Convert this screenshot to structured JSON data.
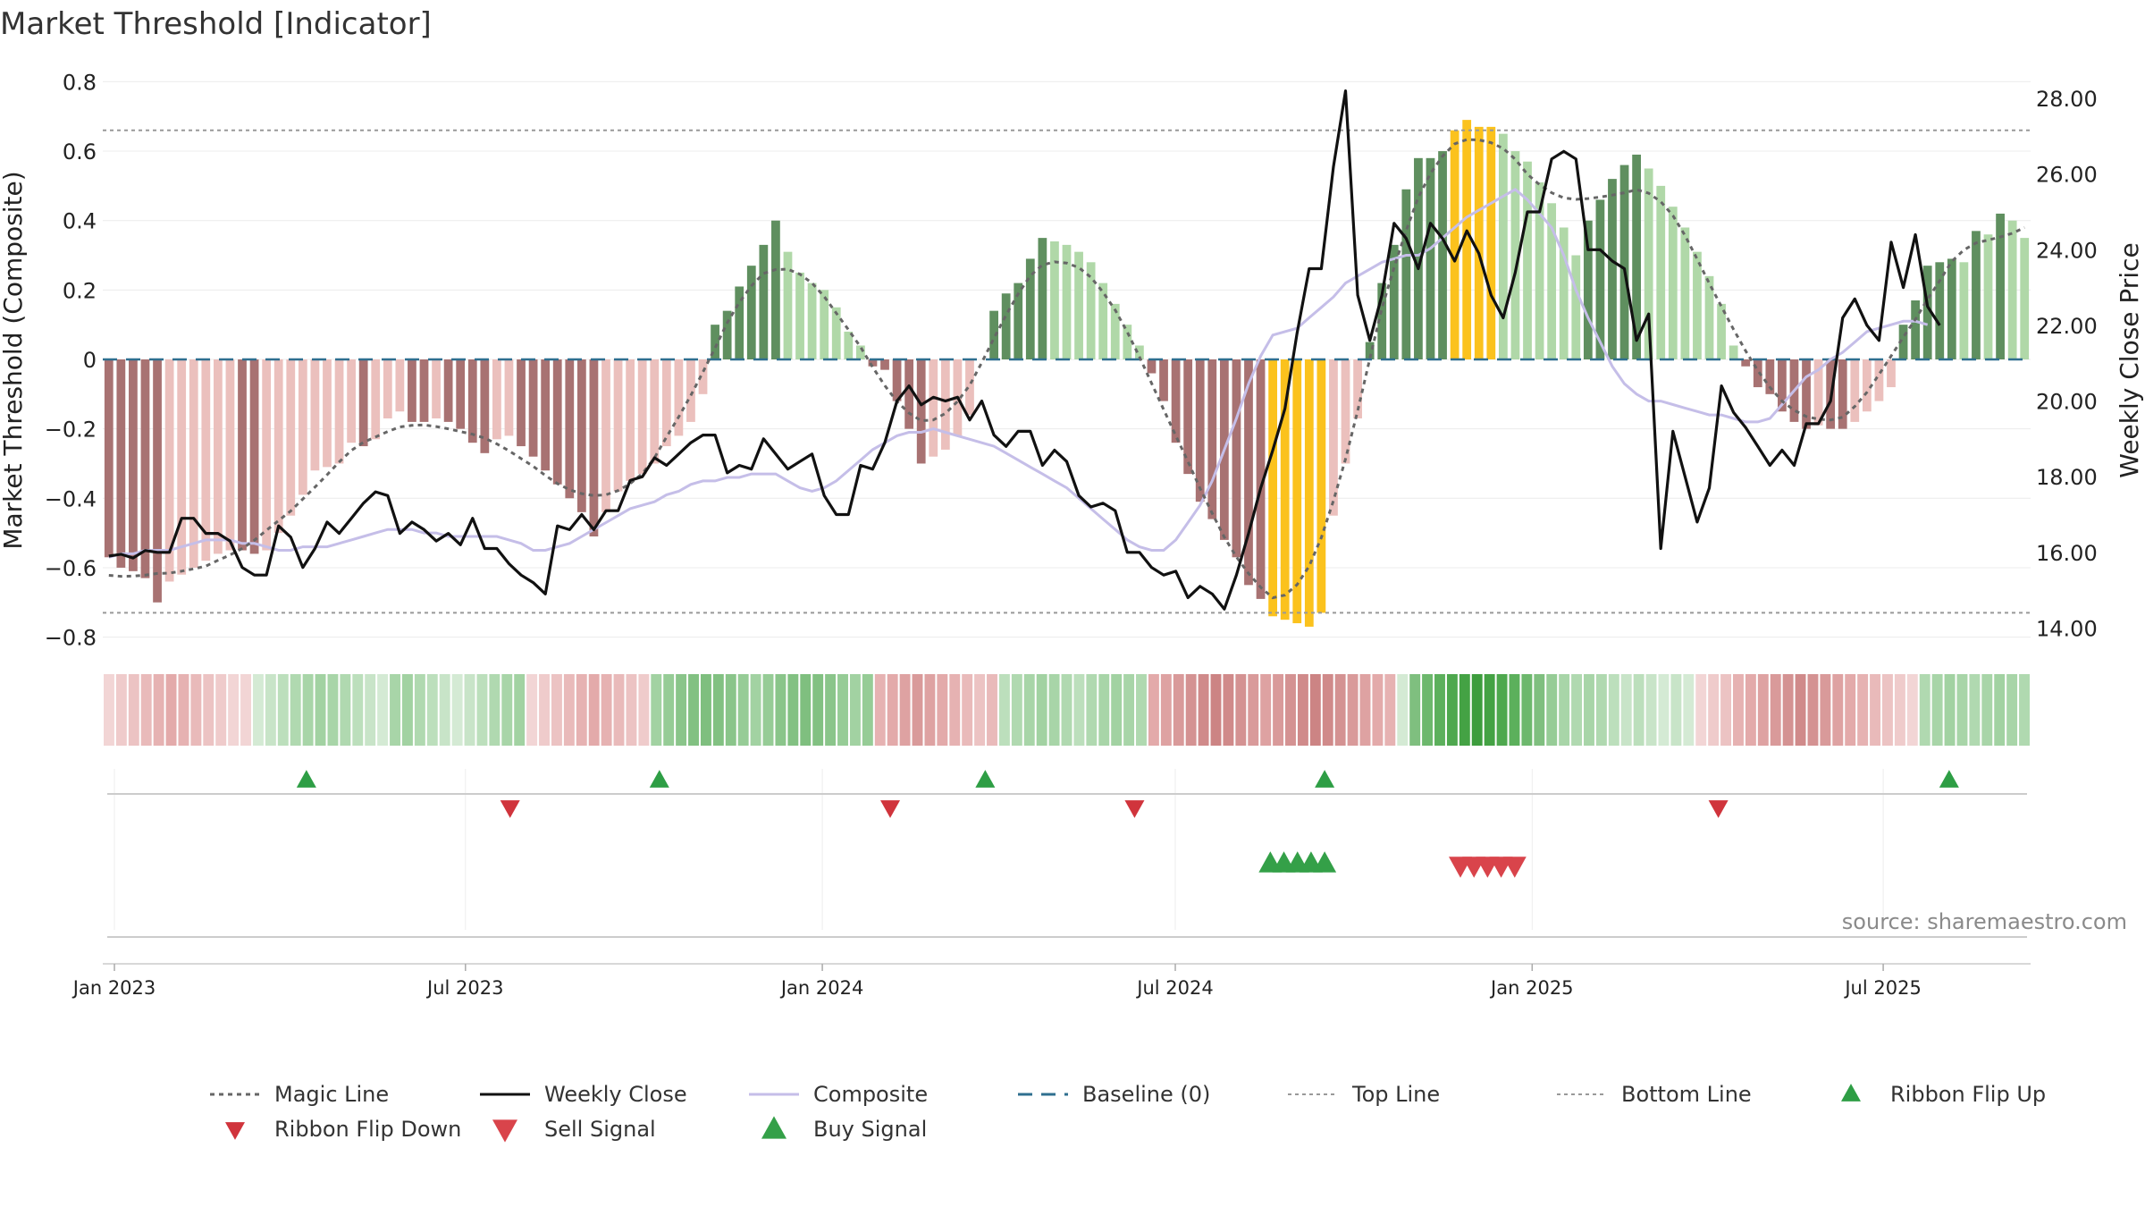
{
  "chart_data": {
    "type": "bar",
    "title": "Market Threshold [Indicator]",
    "ylabel_left": "Market Threshold (Composite)",
    "ylabel_right": "Weekly Close Price",
    "ylim_left": [
      -0.85,
      0.85
    ],
    "ylim_right": [
      13.3,
      28.9
    ],
    "yticks_left": [
      {
        "value": 0.8,
        "label": "0.8"
      },
      {
        "value": 0.6,
        "label": "0.6"
      },
      {
        "value": 0.4,
        "label": "0.4"
      },
      {
        "value": 0.2,
        "label": "0.2"
      },
      {
        "value": 0.0,
        "label": "0"
      },
      {
        "value": -0.2,
        "label": "−0.2"
      },
      {
        "value": -0.4,
        "label": "−0.4"
      },
      {
        "value": -0.6,
        "label": "−0.6"
      },
      {
        "value": -0.8,
        "label": "−0.8"
      }
    ],
    "yticks_right": [
      "28.00",
      "26.00",
      "24.00",
      "22.00",
      "20.00",
      "18.00",
      "16.00",
      "14.00"
    ],
    "x_start": "2022-12-26",
    "x_end": "2025-09-15",
    "xticks": [
      {
        "date": "2023-01-01",
        "label": "Jan 2023"
      },
      {
        "date": "2023-07-01",
        "label": "Jul 2023"
      },
      {
        "date": "2024-01-01",
        "label": "Jan 2024"
      },
      {
        "date": "2024-07-01",
        "label": "Jul 2024"
      },
      {
        "date": "2025-01-01",
        "label": "Jan 2025"
      },
      {
        "date": "2025-07-01",
        "label": "Jul 2025"
      }
    ],
    "top_line": 0.66,
    "bottom_line": -0.73,
    "baseline": 0,
    "composite_bars": [
      -0.57,
      -0.6,
      -0.61,
      -0.63,
      -0.7,
      -0.64,
      -0.62,
      -0.6,
      -0.58,
      -0.56,
      -0.55,
      -0.55,
      -0.56,
      -0.55,
      -0.5,
      -0.45,
      -0.39,
      -0.32,
      -0.31,
      -0.3,
      -0.24,
      -0.25,
      -0.23,
      -0.17,
      -0.15,
      -0.18,
      -0.18,
      -0.17,
      -0.18,
      -0.2,
      -0.24,
      -0.27,
      -0.23,
      -0.22,
      -0.25,
      -0.28,
      -0.32,
      -0.36,
      -0.4,
      -0.44,
      -0.51,
      -0.44,
      -0.38,
      -0.35,
      -0.33,
      -0.3,
      -0.25,
      -0.22,
      -0.18,
      -0.1,
      0.1,
      0.14,
      0.21,
      0.27,
      0.33,
      0.4,
      0.31,
      0.25,
      0.22,
      0.2,
      0.15,
      0.08,
      0.04,
      -0.02,
      -0.03,
      -0.12,
      -0.2,
      -0.3,
      -0.28,
      -0.26,
      -0.22,
      -0.16,
      0.0,
      0.14,
      0.19,
      0.22,
      0.29,
      0.35,
      0.34,
      0.33,
      0.31,
      0.28,
      0.22,
      0.16,
      0.1,
      0.04,
      -0.04,
      -0.12,
      -0.24,
      -0.33,
      -0.41,
      -0.46,
      -0.52,
      -0.57,
      -0.65,
      -0.69,
      -0.74,
      -0.75,
      -0.76,
      -0.77,
      -0.73,
      -0.45,
      -0.3,
      -0.17,
      0.05,
      0.22,
      0.33,
      0.49,
      0.58,
      0.58,
      0.6,
      0.66,
      0.69,
      0.67,
      0.67,
      0.65,
      0.6,
      0.57,
      0.51,
      0.45,
      0.38,
      0.3,
      0.4,
      0.46,
      0.52,
      0.56,
      0.59,
      0.55,
      0.5,
      0.44,
      0.38,
      0.31,
      0.24,
      0.16,
      0.04,
      -0.02,
      -0.08,
      -0.1,
      -0.15,
      -0.18,
      -0.2,
      -0.19,
      -0.2,
      -0.2,
      -0.18,
      -0.15,
      -0.12,
      -0.08,
      0.1,
      0.17,
      0.27,
      0.28,
      0.29,
      0.28,
      0.37,
      0.36,
      0.42,
      0.4,
      0.35
    ],
    "composite_line": [
      -0.57,
      -0.56,
      -0.56,
      -0.55,
      -0.55,
      -0.55,
      -0.54,
      -0.53,
      -0.52,
      -0.52,
      -0.52,
      -0.53,
      -0.53,
      -0.54,
      -0.55,
      -0.55,
      -0.54,
      -0.54,
      -0.54,
      -0.53,
      -0.52,
      -0.51,
      -0.5,
      -0.49,
      -0.49,
      -0.49,
      -0.5,
      -0.5,
      -0.51,
      -0.51,
      -0.51,
      -0.51,
      -0.51,
      -0.52,
      -0.53,
      -0.55,
      -0.55,
      -0.54,
      -0.53,
      -0.51,
      -0.49,
      -0.47,
      -0.45,
      -0.43,
      -0.42,
      -0.41,
      -0.39,
      -0.38,
      -0.36,
      -0.35,
      -0.35,
      -0.34,
      -0.34,
      -0.33,
      -0.33,
      -0.33,
      -0.35,
      -0.37,
      -0.38,
      -0.37,
      -0.35,
      -0.32,
      -0.29,
      -0.26,
      -0.24,
      -0.22,
      -0.21,
      -0.21,
      -0.2,
      -0.21,
      -0.22,
      -0.23,
      -0.24,
      -0.25,
      -0.27,
      -0.29,
      -0.31,
      -0.33,
      -0.35,
      -0.37,
      -0.4,
      -0.43,
      -0.46,
      -0.49,
      -0.52,
      -0.54,
      -0.55,
      -0.55,
      -0.52,
      -0.47,
      -0.42,
      -0.35,
      -0.26,
      -0.17,
      -0.07,
      0.01,
      0.07,
      0.08,
      0.09,
      0.12,
      0.15,
      0.18,
      0.22,
      0.24,
      0.26,
      0.28,
      0.29,
      0.3,
      0.3,
      0.32,
      0.35,
      0.38,
      0.41,
      0.43,
      0.45,
      0.47,
      0.49,
      0.46,
      0.42,
      0.38,
      0.3,
      0.2,
      0.12,
      0.05,
      -0.02,
      -0.07,
      -0.1,
      -0.12,
      -0.12,
      -0.13,
      -0.14,
      -0.15,
      -0.16,
      -0.16,
      -0.17,
      -0.18,
      -0.18,
      -0.17,
      -0.13,
      -0.09,
      -0.05,
      -0.03,
      0.0,
      0.02,
      0.05,
      0.08,
      0.09,
      0.1,
      0.11,
      0.11,
      0.1
    ],
    "bar_start_index": 0,
    "composite_start_index": 0,
    "weekly_close": [
      15.9,
      15.95,
      15.85,
      16.05,
      16.0,
      16.0,
      16.9,
      16.9,
      16.5,
      16.5,
      16.3,
      15.6,
      15.4,
      15.4,
      16.7,
      16.4,
      15.6,
      16.1,
      16.8,
      16.5,
      16.9,
      17.3,
      17.6,
      17.5,
      16.5,
      16.8,
      16.6,
      16.3,
      16.5,
      16.2,
      16.9,
      16.1,
      16.1,
      15.7,
      15.4,
      15.2,
      14.9,
      16.7,
      16.6,
      17.0,
      16.6,
      17.1,
      17.1,
      17.9,
      18.0,
      18.5,
      18.3,
      18.6,
      18.9,
      19.1,
      19.1,
      18.1,
      18.3,
      18.2,
      19.0,
      18.6,
      18.2,
      18.4,
      18.6,
      17.5,
      17.0,
      17.0,
      18.3,
      18.2,
      18.9,
      20.0,
      20.4,
      19.9,
      20.1,
      20.0,
      20.1,
      19.5,
      20.0,
      19.1,
      18.8,
      19.2,
      19.2,
      18.3,
      18.7,
      18.4,
      17.5,
      17.2,
      17.3,
      17.1,
      16.0,
      16.0,
      15.6,
      15.4,
      15.5,
      14.8,
      15.1,
      14.9,
      14.5,
      15.4,
      16.5,
      17.7,
      18.7,
      19.8,
      21.8,
      23.5,
      23.5,
      26.2,
      28.2,
      22.8,
      21.6,
      22.8,
      24.7,
      24.3,
      23.5,
      24.7,
      24.3,
      23.7,
      24.5,
      23.9,
      22.8,
      22.2,
      23.4,
      25.0,
      25.0,
      26.4,
      26.6,
      26.4,
      24.0,
      24.0,
      23.7,
      23.5,
      21.6,
      22.3,
      16.1,
      19.2,
      18.0,
      16.8,
      17.7,
      20.4,
      19.7,
      19.3,
      18.8,
      18.3,
      18.7,
      18.3,
      19.4,
      19.4,
      20.0,
      22.2,
      22.7,
      22.0,
      21.6,
      24.2,
      23.0,
      24.4,
      22.5,
      22.0
    ],
    "ribbon": [
      "#f2d5d5",
      "#efcbcb",
      "#ecc3c3",
      "#e9baba",
      "#e6b2b2",
      "#e3aaaa",
      "#e6b2b2",
      "#e9baba",
      "#ecc3c3",
      "#efcbcb",
      "#f2d5d5",
      "#f2d5d5",
      "#d4ead4",
      "#c8e4c8",
      "#bcdfbc",
      "#b0d9b0",
      "#a8d5a8",
      "#a2d2a2",
      "#a8d5a8",
      "#b0d9b0",
      "#bcdfbc",
      "#c8e4c8",
      "#d4ead4",
      "#a8d5a8",
      "#a2d2a2",
      "#b0d9b0",
      "#bcdfbc",
      "#c8e4c8",
      "#d4ead4",
      "#c8e4c8",
      "#bcdfbc",
      "#b0d9b0",
      "#a8d5a8",
      "#a2d2a2",
      "#f2d5d5",
      "#efcbcb",
      "#ecc3c3",
      "#e9baba",
      "#e6b2b2",
      "#e3aaaa",
      "#e6b2b2",
      "#e9baba",
      "#ecc3c3",
      "#efcbcb",
      "#a2d2a2",
      "#96cc96",
      "#8ac58a",
      "#82c182",
      "#7fbf7f",
      "#82c182",
      "#8ac58a",
      "#96cc96",
      "#a2d2a2",
      "#96cc96",
      "#8ac58a",
      "#82c182",
      "#7fbf7f",
      "#82c182",
      "#8ac58a",
      "#96cc96",
      "#a2d2a2",
      "#96cc96",
      "#e6b2b2",
      "#e3aaaa",
      "#dea2a2",
      "#d99a9a",
      "#dea2a2",
      "#e3aaaa",
      "#e6b2b2",
      "#e9baba",
      "#ecc3c3",
      "#e9baba",
      "#bcdfbc",
      "#b0d9b0",
      "#a8d5a8",
      "#a2d2a2",
      "#a8d5a8",
      "#b0d9b0",
      "#bcdfbc",
      "#b0d9b0",
      "#a8d5a8",
      "#a2d2a2",
      "#a8d5a8",
      "#b0d9b0",
      "#e3aaaa",
      "#dea2a2",
      "#d99a9a",
      "#d49292",
      "#d08a8a",
      "#cc8484",
      "#d08a8a",
      "#d49292",
      "#d99a9a",
      "#dea2a2",
      "#d99a9a",
      "#d49292",
      "#d08a8a",
      "#cc8484",
      "#d08a8a",
      "#d49292",
      "#d99a9a",
      "#dea2a2",
      "#e3aaaa",
      "#e6b2b2",
      "#d4ead4",
      "#7fbf7f",
      "#6db86d",
      "#5cb05c",
      "#4ea84e",
      "#44a244",
      "#3d9d3d",
      "#44a244",
      "#4ea84e",
      "#5cb05c",
      "#6db86d",
      "#7fbf7f",
      "#96cc96",
      "#a8d5a8",
      "#b0d9b0",
      "#a8d5a8",
      "#b0d9b0",
      "#bcdfbc",
      "#c8e4c8",
      "#bcdfbc",
      "#c8e4c8",
      "#d4ead4",
      "#c8e4c8",
      "#d4ead4",
      "#f2d5d5",
      "#efcbcb",
      "#ecc3c3",
      "#e6b2b2",
      "#e3aaaa",
      "#dea2a2",
      "#d99a9a",
      "#d49292",
      "#d08a8a",
      "#d49292",
      "#d99a9a",
      "#dea2a2",
      "#e3aaaa",
      "#e6b2b2",
      "#e9baba",
      "#ecc3c3",
      "#efcbcb",
      "#f2d5d5",
      "#b0d9b0",
      "#a8d5a8",
      "#a2d2a2",
      "#a8d5a8",
      "#b0d9b0",
      "#a8d5a8",
      "#a2d2a2",
      "#a8d5a8",
      "#b0d9b0"
    ],
    "ribbon_flip_up": [
      "2023-04-10",
      "2023-10-09",
      "2024-03-25",
      "2024-09-16",
      "2025-08-04"
    ],
    "ribbon_flip_down": [
      "2023-07-24",
      "2024-02-05",
      "2024-06-10",
      "2025-04-07"
    ],
    "buy_signals": [
      "2024-08-19",
      "2024-08-26",
      "2024-09-02",
      "2024-09-09",
      "2024-09-16"
    ],
    "sell_signals": [
      "2024-11-25",
      "2024-12-02",
      "2024-12-09",
      "2024-12-16",
      "2024-12-23"
    ],
    "colors": {
      "weekly_close": "#111111",
      "composite": "#c5bee8",
      "magic_line": "#666666",
      "baseline": "#2f6f8f",
      "top_bottom": "#999999",
      "neg_dark": "#a87272",
      "neg_light": "#ebc0bd",
      "pos_dark": "#5f8f5f",
      "pos_light": "#b0d8a8",
      "extreme": "#fbc21d",
      "flip_up": "#2e9e45",
      "flip_down": "#d0343c",
      "sell": "#d9444b",
      "buy": "#34a048"
    },
    "legend": [
      {
        "key": "magic",
        "label": "Magic Line"
      },
      {
        "key": "close",
        "label": "Weekly Close"
      },
      {
        "key": "composite",
        "label": "Composite"
      },
      {
        "key": "baseline",
        "label": "Baseline (0)"
      },
      {
        "key": "top",
        "label": "Top Line"
      },
      {
        "key": "bottom",
        "label": "Bottom Line"
      },
      {
        "key": "flipup",
        "label": "Ribbon Flip Up"
      },
      {
        "key": "flipdown",
        "label": "Ribbon Flip Down"
      },
      {
        "key": "sell",
        "label": "Sell Signal"
      },
      {
        "key": "buy",
        "label": "Buy Signal"
      }
    ],
    "source": "source: sharemaestro.com"
  }
}
